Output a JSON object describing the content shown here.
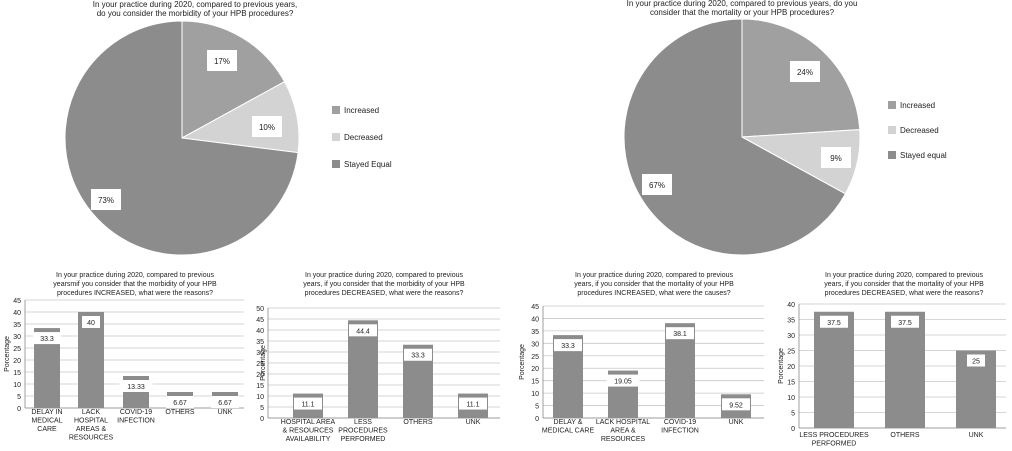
{
  "colors": {
    "increased": "#a0a0a0",
    "decreased": "#d3d3d3",
    "equal": "#8c8c8c",
    "bar": "#8c8c8c",
    "grid": "#c8c8c8",
    "axis": "#888888"
  },
  "chart_data": [
    {
      "type": "pie",
      "title_lines": [
        "In your practice during 2020, compared to previous years,",
        "do you consider the morbidity of your HPB procedures?"
      ],
      "slices": [
        {
          "label": "Increased",
          "value": 17,
          "text": "17%"
        },
        {
          "label": "Decreased",
          "value": 10,
          "text": "10%"
        },
        {
          "label": "Stayed Equal",
          "value": 73,
          "text": "73%"
        }
      ],
      "legend": "right"
    },
    {
      "type": "pie",
      "title_lines": [
        "In your practice during 2020,  compared to previous years, do you",
        "consider that the mortality or your HPB procedures?"
      ],
      "slices": [
        {
          "label": "Increased",
          "value": 24,
          "text": "24%"
        },
        {
          "label": "Decreased",
          "value": 9,
          "text": "9%"
        },
        {
          "label": "Stayed equal",
          "value": 67,
          "text": "67%"
        }
      ],
      "legend": "right"
    },
    {
      "type": "bar",
      "title_lines": [
        "In your practice during 2020, compared to previous",
        "yearsmif you consider that the morbidity of your HPB",
        "procedures INCREASED, what were the reasons?"
      ],
      "ylabel": "Porcentage",
      "ylim": [
        0,
        45
      ],
      "yticks": [
        0,
        5,
        10,
        15,
        20,
        25,
        30,
        35,
        40,
        45
      ],
      "grid": true,
      "categories": [
        [
          "DELAY IN",
          "MEDICAL",
          "CARE"
        ],
        [
          "LACK",
          "HOSPITAL",
          "AREAS &",
          "RESOURCES"
        ],
        [
          "COVID-19",
          "INFECTION"
        ],
        [
          "OTHERS"
        ],
        [
          "UNK"
        ]
      ],
      "values": [
        33.3,
        40,
        13.33,
        6.67,
        6.67
      ],
      "value_labels": [
        "33.3",
        "40",
        "13.33",
        "6.67",
        "6.67"
      ]
    },
    {
      "type": "bar",
      "title_lines": [
        "In your practice during 2020, compared to previous",
        "years, if you consider that the morbidity of your HPB",
        "procedures DECREASED, what were the reasons?"
      ],
      "ylabel": "Porcentage",
      "ylim": [
        0,
        50
      ],
      "yticks": [
        0,
        5,
        10,
        15,
        20,
        25,
        30,
        35,
        40,
        45,
        50
      ],
      "grid": true,
      "categories": [
        [
          "HOSPITAL AREA",
          "& RESOURCES",
          "AVAILABILITY"
        ],
        [
          "LESS",
          "PROCEDURES",
          "PERFORMED"
        ],
        [
          "OTHERS"
        ],
        [
          "UNK"
        ]
      ],
      "values": [
        11.1,
        44.4,
        33.3,
        11.1
      ],
      "value_labels": [
        "11.1",
        "44.4",
        "33.3",
        "11.1"
      ]
    },
    {
      "type": "bar",
      "title_lines": [
        "In your practice during 2020, compared to previous",
        "years, if you consider that the mortality of your HPB",
        "procedures INCREASED, what were the causes?"
      ],
      "ylabel": "Porcentage",
      "ylim": [
        0,
        45
      ],
      "yticks": [
        0,
        5,
        10,
        15,
        20,
        25,
        30,
        35,
        40,
        45
      ],
      "grid": true,
      "categories": [
        [
          "DELAY &",
          "MEDICAL CARE"
        ],
        [
          "LACK HOSPITAL",
          "AREA &",
          "RESOURCES"
        ],
        [
          "COVID-19",
          "INFECTION"
        ],
        [
          "UNK"
        ]
      ],
      "values": [
        33.3,
        19.05,
        38.1,
        9.52
      ],
      "value_labels": [
        "33.3",
        "19.05",
        "38.1",
        "9.52"
      ]
    },
    {
      "type": "bar",
      "title_lines": [
        "In your practice during 2020, compared to previous",
        "years, if you consider that the mortality of your HPB",
        "procedures DECREASED, what were the reasons?"
      ],
      "ylabel": "Porcentage",
      "ylim": [
        0,
        40
      ],
      "yticks": [
        0,
        5,
        10,
        15,
        20,
        25,
        30,
        35,
        40
      ],
      "grid": true,
      "categories": [
        [
          "LESS PROCEDURES",
          "PERFORMED"
        ],
        [
          "OTHERS"
        ],
        [
          "UNK"
        ]
      ],
      "values": [
        37.5,
        37.5,
        25
      ],
      "value_labels": [
        "37.5",
        "37.5",
        "25"
      ]
    }
  ]
}
